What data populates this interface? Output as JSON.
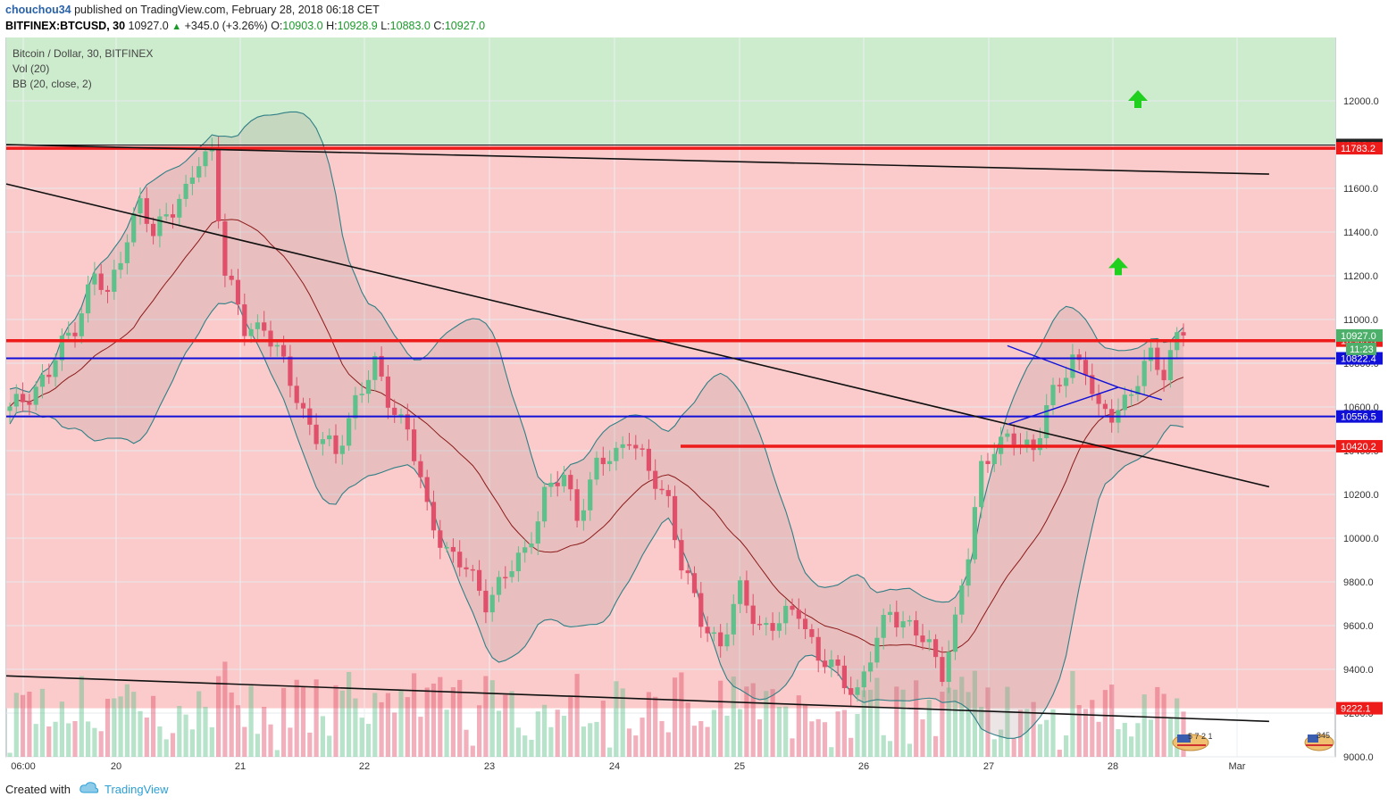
{
  "header": {
    "author": "chouchou34",
    "published_text": "published on TradingView.com, February 28, 2018 06:18 CET",
    "symbol": "BITFINEX:BTCUSD, 30",
    "price": "10927.0",
    "change": "+345.0 (+3.26%)",
    "o_label": "O:",
    "o": "10903.0",
    "h_label": "H:",
    "h": "10928.9",
    "l_label": "L:",
    "l": "10883.0",
    "c_label": "C:",
    "c": "10927.0"
  },
  "legend": {
    "title": "Bitcoin / Dollar, 30, BITFINEX",
    "vol": "Vol (20)",
    "bb": "BB (20, close, 2)"
  },
  "footer": {
    "created": "Created with",
    "brand": "TradingView"
  },
  "colors": {
    "up": "#5ec08a",
    "down": "#e0506a",
    "zone_green": "#cdeccd",
    "zone_red": "#fbcbcb",
    "red_line": "#ee1b1b",
    "blue_line": "#1010d8",
    "trend_line": "#111111",
    "bb_band": "#2f7f86",
    "bb_basis": "#8b1a1a",
    "arrow": "#1fd01f"
  },
  "chart_data": {
    "type": "candlestick",
    "title": "Bitcoin / Dollar, 30, BITFINEX",
    "ylim": [
      9000,
      12200
    ],
    "y_ticks": [
      9000,
      9200,
      9400,
      9600,
      9800,
      10000,
      10200,
      10400,
      10600,
      10800,
      11000,
      11200,
      11400,
      11600,
      11800,
      12000
    ],
    "y_tick_labels": [
      "9000.0",
      "9200.0",
      "9400.0",
      "9600.0",
      "9800.0",
      "10000.0",
      "10200.0",
      "10400.0",
      "10600.0",
      "10800.0",
      "11000.0",
      "11200.0",
      "11400.0",
      "11600.0",
      "11800.0",
      "12000.0"
    ],
    "x_tick_labels": [
      "06:00",
      "20",
      "21",
      "22",
      "23",
      "24",
      "25",
      "26",
      "27",
      "28",
      "Mar"
    ],
    "grid": true,
    "price_path": [
      [
        0,
        10580
      ],
      [
        6,
        10750
      ],
      [
        8,
        10880
      ],
      [
        10,
        10980
      ],
      [
        13,
        11200
      ],
      [
        15,
        11100
      ],
      [
        18,
        11400
      ],
      [
        20,
        11520
      ],
      [
        22,
        11380
      ],
      [
        24,
        11500
      ],
      [
        27,
        11570
      ],
      [
        29,
        11720
      ],
      [
        31,
        11780
      ],
      [
        33,
        11220
      ],
      [
        36,
        10950
      ],
      [
        39,
        10980
      ],
      [
        42,
        10780
      ],
      [
        45,
        10580
      ],
      [
        47,
        10470
      ],
      [
        50,
        10380
      ],
      [
        53,
        10640
      ],
      [
        56,
        10780
      ],
      [
        58,
        10640
      ],
      [
        61,
        10500
      ],
      [
        64,
        10120
      ],
      [
        67,
        9950
      ],
      [
        70,
        9850
      ],
      [
        73,
        9720
      ],
      [
        76,
        9820
      ],
      [
        79,
        9940
      ],
      [
        82,
        10200
      ],
      [
        85,
        10280
      ],
      [
        87,
        10110
      ],
      [
        90,
        10320
      ],
      [
        93,
        10390
      ],
      [
        95,
        10480
      ],
      [
        98,
        10290
      ],
      [
        101,
        10180
      ],
      [
        103,
        9880
      ],
      [
        106,
        9620
      ],
      [
        109,
        9520
      ],
      [
        112,
        9750
      ],
      [
        115,
        9600
      ],
      [
        118,
        9610
      ],
      [
        121,
        9680
      ],
      [
        124,
        9450
      ],
      [
        127,
        9380
      ],
      [
        130,
        9300
      ],
      [
        132,
        9450
      ],
      [
        135,
        9680
      ],
      [
        138,
        9590
      ],
      [
        141,
        9500
      ],
      [
        143,
        9400
      ],
      [
        145,
        9610
      ],
      [
        147,
        9920
      ],
      [
        149,
        10330
      ],
      [
        151,
        10430
      ],
      [
        154,
        10440
      ],
      [
        157,
        10420
      ],
      [
        159,
        10600
      ],
      [
        161,
        10690
      ],
      [
        163,
        10830
      ],
      [
        165,
        10790
      ],
      [
        167,
        10560
      ],
      [
        169,
        10560
      ],
      [
        172,
        10680
      ],
      [
        175,
        10820
      ],
      [
        177,
        10760
      ],
      [
        179,
        10940
      ],
      [
        180,
        10927
      ]
    ],
    "volume_max": 800,
    "annotations": {
      "horizontal_lines": [
        {
          "value": 11798.2,
          "label": "11798.2",
          "color": "black"
        },
        {
          "value": 11783.2,
          "label": "11783.2",
          "color": "red"
        },
        {
          "value": 10903.3,
          "label": "10903.3",
          "color": "red"
        },
        {
          "value": 10822.4,
          "label": "10822.4",
          "color": "blue"
        },
        {
          "value": 10556.5,
          "label": "10556.5",
          "color": "blue"
        },
        {
          "value": 10420.2,
          "label": "10420.2",
          "color": "red"
        },
        {
          "value": 9222.1,
          "label": "9222.1",
          "color": "red"
        }
      ],
      "last_price": {
        "value": 10927.0,
        "label": "10927.0",
        "countdown": "11:23"
      },
      "trend_lines": [
        {
          "from": [
            0,
            11800
          ],
          "to": [
            193,
            11665
          ]
        },
        {
          "from": [
            0,
            11620
          ],
          "to": [
            193,
            10235
          ]
        },
        {
          "from": [
            0,
            9370
          ],
          "to": [
            193,
            9162
          ]
        }
      ],
      "triangle": {
        "upper": [
          [
            153,
            10880
          ],
          [
            170,
            10690
          ]
        ],
        "lower": [
          [
            153,
            10520
          ],
          [
            170,
            10690
          ]
        ],
        "extension": [
          [
            170,
            10690
          ],
          [
            176,
            10633
          ]
        ]
      },
      "up_arrows": [
        11235,
        12000
      ]
    }
  }
}
